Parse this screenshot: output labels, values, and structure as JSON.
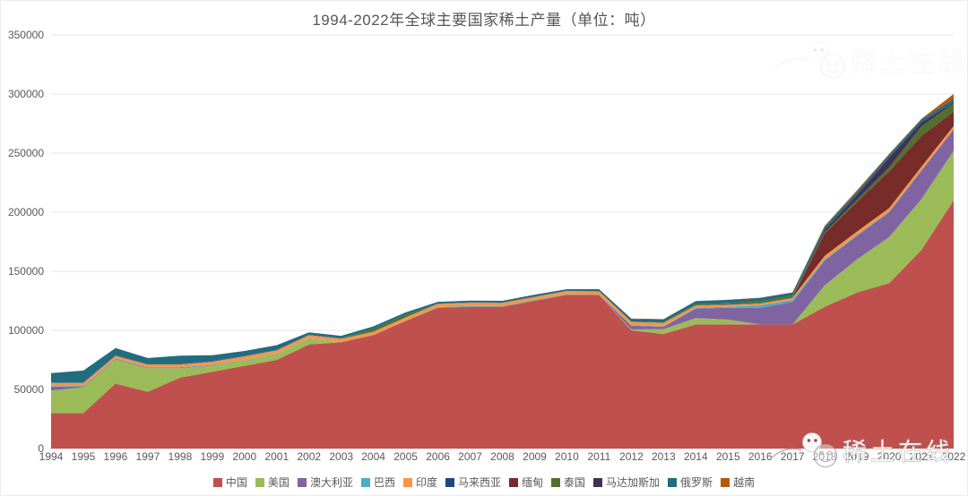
{
  "title": "1994-2022年全球主要国家稀土产量（单位：吨）",
  "watermark": {
    "brand": "稀土在线"
  },
  "axis_colors": {
    "grid": "#e7e7e7",
    "zero_line": "#d9d9d9",
    "tick_text": "#595959"
  },
  "chart_data": {
    "type": "area",
    "stacked": true,
    "title": "1994-2022年全球主要国家稀土产量（单位：吨）",
    "unit": "吨",
    "xlabel": "",
    "ylabel": "",
    "ylim": [
      0,
      350000
    ],
    "ytick_step": 50000,
    "grid": true,
    "legend_position": "bottom",
    "x": [
      1994,
      1995,
      1996,
      1997,
      1998,
      1999,
      2000,
      2001,
      2002,
      2003,
      2004,
      2005,
      2006,
      2007,
      2008,
      2009,
      2010,
      2011,
      2012,
      2013,
      2014,
      2015,
      2016,
      2017,
      2018,
      2019,
      2020,
      2021,
      2022
    ],
    "series": [
      {
        "id": "china",
        "name": "中国",
        "color": "#c0504d",
        "values": [
          30000,
          30000,
          55000,
          48000,
          60000,
          65000,
          70000,
          75000,
          88000,
          90000,
          96000,
          108000,
          119000,
          120000,
          120000,
          125000,
          130000,
          130000,
          100000,
          97000,
          105000,
          105000,
          105000,
          105000,
          120000,
          132000,
          140000,
          168000,
          210000
        ]
      },
      {
        "id": "usa",
        "name": "美国",
        "color": "#9bbb59",
        "values": [
          19000,
          22000,
          20400,
          20000,
          8000,
          5000,
          5000,
          5000,
          5000,
          0,
          0,
          0,
          0,
          0,
          0,
          0,
          0,
          0,
          800,
          4000,
          5400,
          4100,
          0,
          0,
          18000,
          28000,
          39000,
          43000,
          42000
        ]
      },
      {
        "id": "australia",
        "name": "澳大利亚",
        "color": "#8064a2",
        "values": [
          3500,
          600,
          500,
          500,
          500,
          400,
          200,
          200,
          100,
          0,
          0,
          0,
          0,
          0,
          0,
          0,
          0,
          0,
          3200,
          2000,
          8000,
          10000,
          14000,
          19000,
          21000,
          20000,
          21000,
          24000,
          18000
        ]
      },
      {
        "id": "brazil",
        "name": "巴西",
        "color": "#4bacc6",
        "values": [
          400,
          400,
          400,
          400,
          400,
          400,
          200,
          200,
          200,
          200,
          200,
          200,
          700,
          700,
          550,
          650,
          550,
          250,
          300,
          300,
          880,
          880,
          2200,
          1700,
          1100,
          710,
          600,
          500,
          80
        ]
      },
      {
        "id": "india",
        "name": "印度",
        "color": "#f79646",
        "values": [
          2500,
          2500,
          2200,
          2200,
          2200,
          2700,
          2700,
          2700,
          2700,
          2700,
          2700,
          2700,
          2700,
          2700,
          2700,
          2700,
          2800,
          2800,
          2900,
          2900,
          1700,
          1700,
          1500,
          1800,
          2900,
          2900,
          2900,
          2900,
          2900
        ]
      },
      {
        "id": "malaysia",
        "name": "马来西亚",
        "color": "#1f497d",
        "values": [
          240,
          440,
          450,
          450,
          450,
          450,
          450,
          350,
          350,
          350,
          300,
          150,
          250,
          250,
          250,
          350,
          30,
          280,
          100,
          180,
          240,
          500,
          300,
          300,
          0,
          0,
          0,
          80,
          80
        ]
      },
      {
        "id": "myanmar",
        "name": "缅甸",
        "color": "#772c2a",
        "values": [
          0,
          0,
          0,
          0,
          0,
          0,
          0,
          0,
          0,
          0,
          0,
          0,
          0,
          0,
          0,
          0,
          0,
          0,
          0,
          0,
          0,
          0,
          0,
          0,
          19000,
          25000,
          31000,
          26000,
          12000
        ]
      },
      {
        "id": "thailand",
        "name": "泰国",
        "color": "#52702c",
        "values": [
          160,
          20,
          40,
          30,
          30,
          20,
          20,
          20,
          20,
          120,
          2200,
          2200,
          0,
          0,
          0,
          0,
          0,
          0,
          100,
          420,
          1100,
          760,
          1600,
          1600,
          1000,
          1900,
          3600,
          8200,
          7100
        ]
      },
      {
        "id": "madagascar",
        "name": "马达加斯加",
        "color": "#413055",
        "values": [
          0,
          0,
          0,
          0,
          0,
          0,
          0,
          0,
          0,
          0,
          0,
          0,
          0,
          0,
          0,
          0,
          0,
          0,
          0,
          0,
          0,
          0,
          0,
          0,
          2000,
          4000,
          8000,
          3200,
          960
        ]
      },
      {
        "id": "russia",
        "name": "俄罗斯",
        "color": "#226c80",
        "values": [
          8000,
          10000,
          6000,
          5000,
          7000,
          5000,
          4000,
          4000,
          2000,
          2000,
          2000,
          2000,
          1500,
          1500,
          1500,
          1500,
          1500,
          1500,
          2400,
          2500,
          2500,
          2800,
          2800,
          2600,
          2600,
          2700,
          2700,
          2700,
          2600
        ]
      },
      {
        "id": "vietnam",
        "name": "越南",
        "color": "#b35a0a",
        "values": [
          0,
          0,
          0,
          0,
          0,
          0,
          0,
          0,
          0,
          0,
          0,
          0,
          0,
          0,
          0,
          0,
          0,
          0,
          220,
          220,
          0,
          250,
          220,
          220,
          920,
          1300,
          700,
          400,
          4300
        ]
      }
    ]
  }
}
